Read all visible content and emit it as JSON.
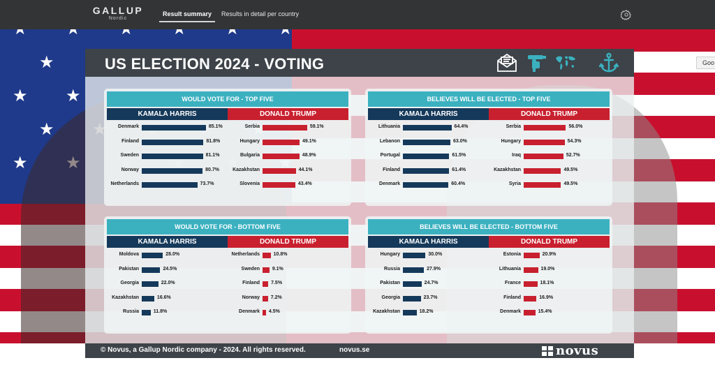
{
  "app": {
    "brand": "GALLUP",
    "brand_sub": "Nordic",
    "tabs": [
      {
        "label": "Result summary",
        "active": true
      },
      {
        "label": "Results in detail per country",
        "active": false
      }
    ],
    "settings_icon": "gear-icon",
    "right_button_label": "Goo"
  },
  "dashboard": {
    "title": "US ELECTION 2024 - VOTING",
    "header_icons": [
      "envelope-icon",
      "hand-drill-icon",
      "world-map-icon",
      "anchor-icon"
    ],
    "footer": {
      "copyright": "© Novus, a Gallup Nordic company - 2024. All rights reserved.",
      "link": "novus.se",
      "logo": "novus"
    },
    "colors": {
      "harris": "#15395a",
      "trump": "#c8202e",
      "panel_title": "#3bb1c0",
      "header": "#3d4349"
    }
  },
  "chart_data": [
    {
      "type": "bar",
      "title": "WOULD VOTE FOR - TOP FIVE",
      "series": [
        {
          "name": "KAMALA HARRIS",
          "categories": [
            "Denmark",
            "Finland",
            "Sweden",
            "Norway",
            "Netherlands"
          ],
          "values": [
            85.1,
            81.8,
            81.1,
            80.7,
            73.7
          ]
        },
        {
          "name": "DONALD TRUMP",
          "categories": [
            "Serbia",
            "Hungary",
            "Bulgaria",
            "Kazakhstan",
            "Slovenia"
          ],
          "values": [
            59.1,
            49.1,
            48.9,
            44.1,
            43.4
          ]
        }
      ],
      "unit": "%"
    },
    {
      "type": "bar",
      "title": "BELIEVES WILL BE ELECTED - TOP FIVE",
      "series": [
        {
          "name": "KAMALA HARRIS",
          "categories": [
            "Lithuania",
            "Lebanon",
            "Portugal",
            "Finland",
            "Denmark"
          ],
          "values": [
            64.4,
            63.0,
            61.5,
            61.4,
            60.4
          ]
        },
        {
          "name": "DONALD TRUMP",
          "categories": [
            "Serbia",
            "Hungary",
            "Iraq",
            "Kazakhstan",
            "Syria"
          ],
          "values": [
            56.0,
            54.3,
            52.7,
            49.5,
            49.5
          ]
        }
      ],
      "unit": "%"
    },
    {
      "type": "bar",
      "title": "WOULD VOTE FOR - BOTTOM FIVE",
      "series": [
        {
          "name": "KAMALA HARRIS",
          "categories": [
            "Moldova",
            "Pakistan",
            "Georgia",
            "Kazakhstan",
            "Russia"
          ],
          "values": [
            28.0,
            24.5,
            22.0,
            16.6,
            11.8
          ]
        },
        {
          "name": "DONALD TRUMP",
          "categories": [
            "Netherlands",
            "Sweden",
            "Finland",
            "Norway",
            "Denmark"
          ],
          "values": [
            10.8,
            9.1,
            7.5,
            7.2,
            4.5
          ]
        }
      ],
      "unit": "%"
    },
    {
      "type": "bar",
      "title": "BELIEVES WILL BE ELECTED - BOTTOM FIVE",
      "series": [
        {
          "name": "KAMALA HARRIS",
          "categories": [
            "Hungary",
            "Russia",
            "Pakistan",
            "Georgia",
            "Kazakhstan"
          ],
          "values": [
            30.0,
            27.9,
            24.7,
            23.7,
            18.2
          ]
        },
        {
          "name": "DONALD TRUMP",
          "categories": [
            "Estonia",
            "Lithuania",
            "France",
            "Finland",
            "Denmark"
          ],
          "values": [
            20.9,
            19.0,
            18.1,
            16.9,
            15.4
          ]
        }
      ],
      "unit": "%"
    }
  ]
}
